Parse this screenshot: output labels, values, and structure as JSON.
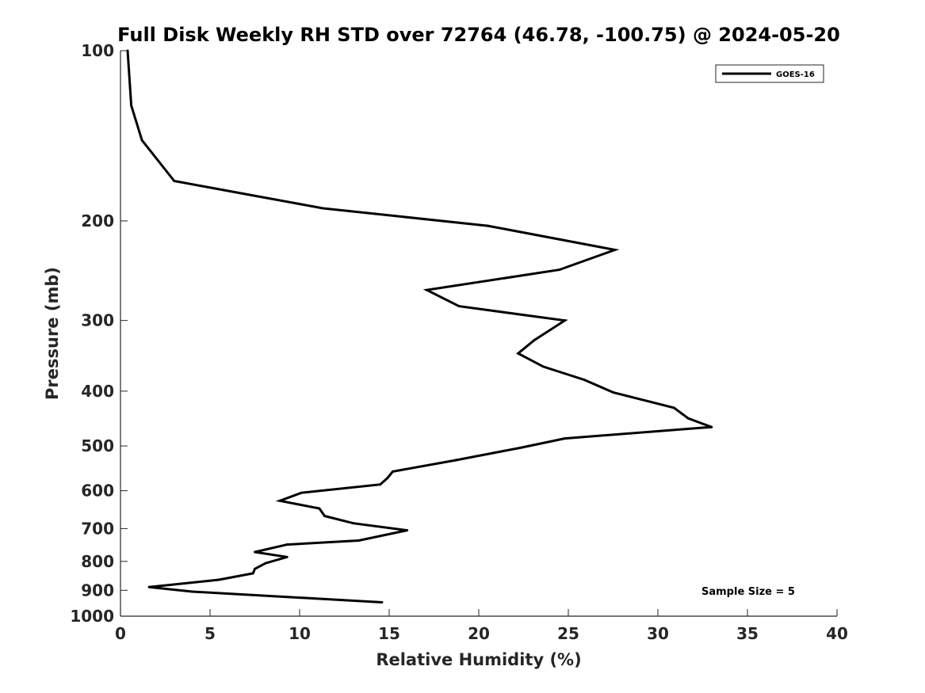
{
  "chart_data": {
    "type": "line",
    "title": "Full Disk Weekly RH STD over 72764 (46.78, -100.75) @ 2024-05-20",
    "xlabel": "Relative Humidity (%)",
    "ylabel": "Pressure (mb)",
    "xlim": [
      0,
      40
    ],
    "ylim": [
      100,
      1000
    ],
    "yscale": "log",
    "yreversed": true,
    "xticks": [
      0,
      5,
      10,
      15,
      20,
      25,
      30,
      35,
      40
    ],
    "yticks": [
      100,
      200,
      300,
      400,
      500,
      600,
      700,
      800,
      900,
      1000
    ],
    "grid": false,
    "legend": {
      "position": "top-right",
      "entries": [
        "GOES-16"
      ]
    },
    "annotation": "Sample Size = 5",
    "series": [
      {
        "name": "GOES-16",
        "color": "#000000",
        "x": [
          0.4,
          0.6,
          1.2,
          3.0,
          11.3,
          20.5,
          27.6,
          24.5,
          17.1,
          18.9,
          24.8,
          23.1,
          22.2,
          23.6,
          25.9,
          27.5,
          30.9,
          31.7,
          33.0,
          24.8,
          22.3,
          18.7,
          15.2,
          14.9,
          14.5,
          10.1,
          8.9,
          11.1,
          11.4,
          13.0,
          16.0,
          13.3,
          9.3,
          7.5,
          9.3,
          8.1,
          7.5,
          7.4,
          5.5,
          1.6,
          4.0,
          14.6
        ],
        "y": [
          100,
          125,
          144,
          170,
          190,
          204,
          225,
          244,
          265,
          283,
          300,
          325,
          343,
          362,
          382,
          402,
          428,
          447,
          463,
          485,
          504,
          530,
          555,
          570,
          585,
          605,
          625,
          645,
          665,
          685,
          705,
          735,
          747,
          770,
          786,
          806,
          825,
          840,
          862,
          888,
          905,
          945
        ]
      }
    ]
  }
}
